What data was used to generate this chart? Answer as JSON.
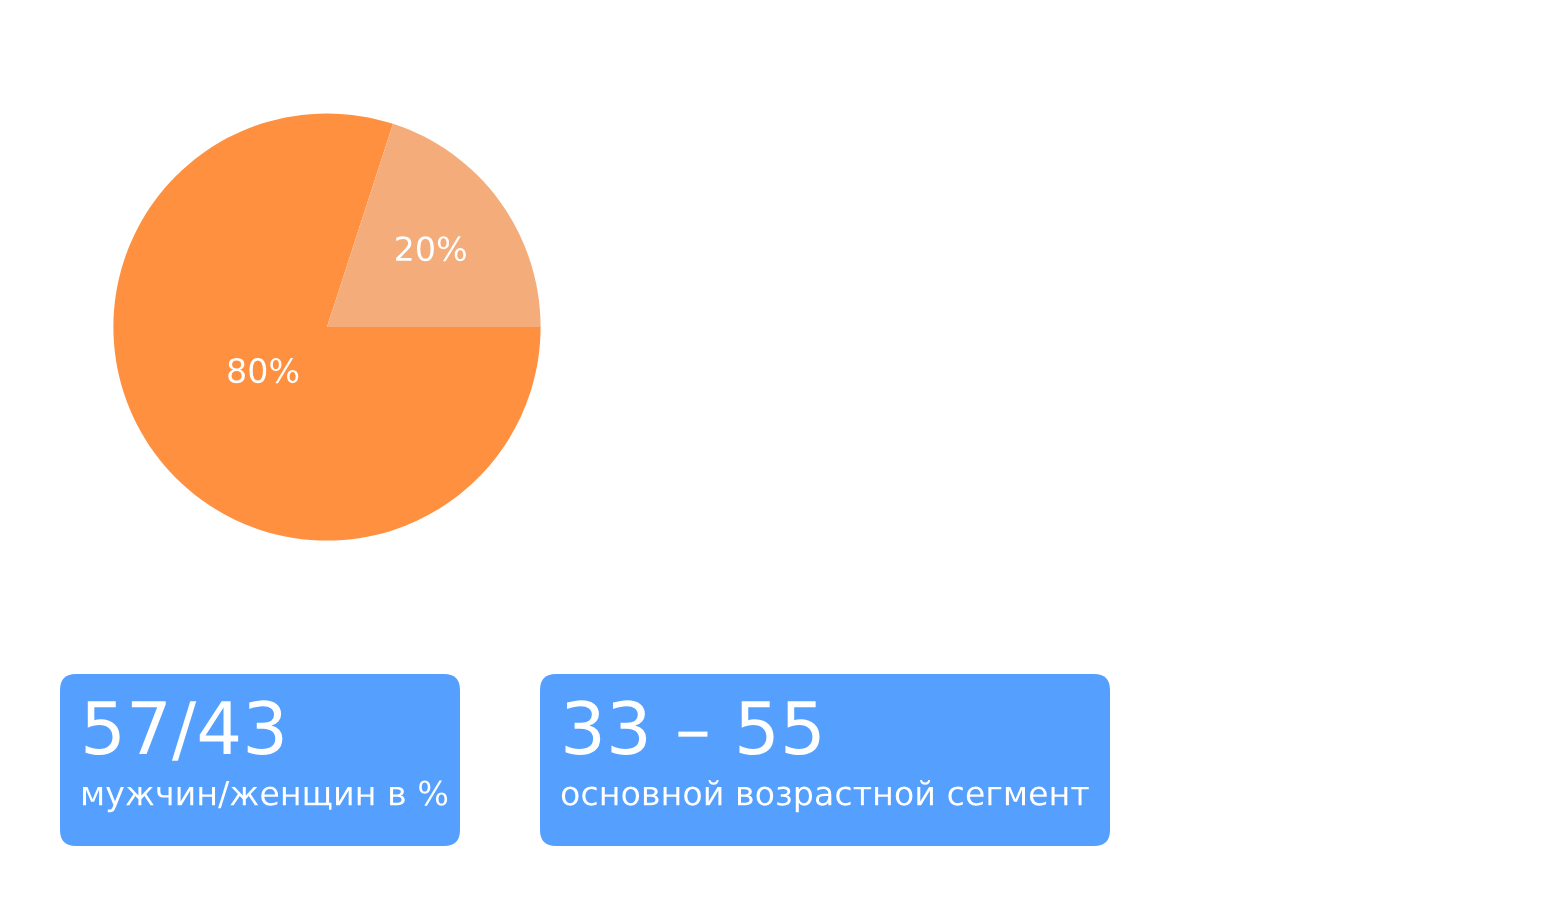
{
  "chart_data": [
    {
      "type": "pie",
      "categories": [
        null,
        null
      ],
      "values": [
        80,
        20
      ],
      "colors": [
        "#ff9040",
        "#f4ad7a"
      ],
      "value_labels": [
        "80%",
        "20%"
      ]
    },
    {
      "type": "other",
      "title": "57/43",
      "subtitle": "мужчин/женщин в %"
    },
    {
      "type": "other",
      "title": "33 – 55",
      "subtitle": "основной возрастной сегмент"
    }
  ]
}
